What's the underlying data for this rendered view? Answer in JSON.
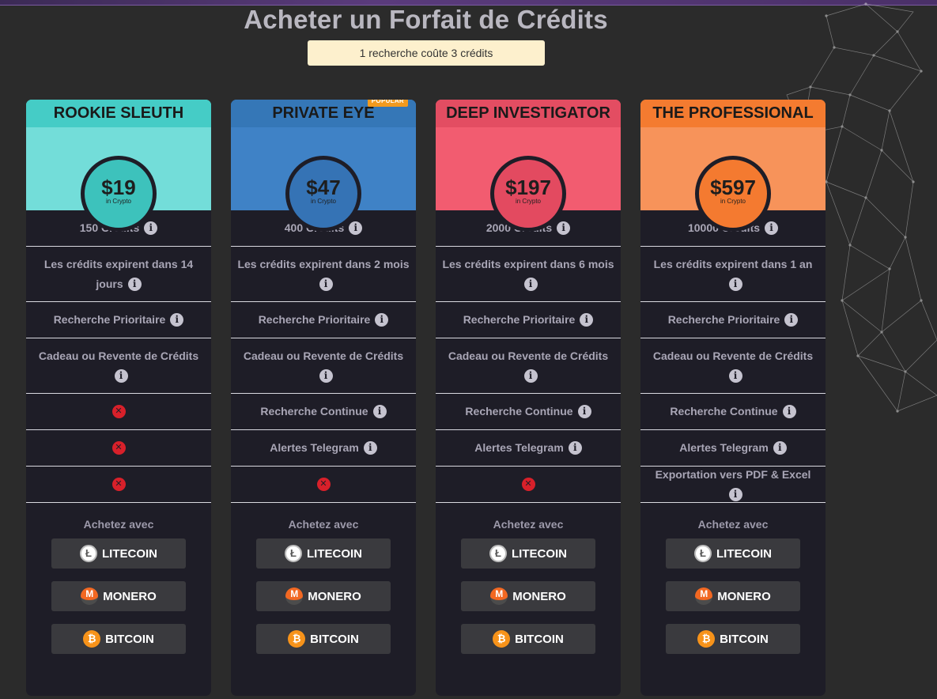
{
  "page": {
    "title": "Acheter un Forfait de Crédits",
    "cost_note": "1 recherche coûte 3 crédits"
  },
  "plans": [
    {
      "name": "ROOKIE SLEUTH",
      "price": "$19",
      "price_sub": "in Crypto",
      "header_color": "#45ccc6",
      "panel_color": "#73ddd9",
      "ring_color": "#3dc2bc",
      "features": [
        {
          "text": "150 Crédits",
          "status": "info"
        },
        {
          "text": "Les crédits expirent dans 14 jours",
          "status": "info"
        },
        {
          "text": "Recherche Prioritaire",
          "status": "info"
        },
        {
          "text": "Cadeau ou Revente de Crédits",
          "status": "info"
        },
        {
          "text": "",
          "status": "unavailable"
        },
        {
          "text": "",
          "status": "unavailable"
        },
        {
          "text": "",
          "status": "unavailable"
        }
      ]
    },
    {
      "name": "PRIVATE EYE",
      "badge": "POPULAR",
      "price": "$47",
      "price_sub": "in Crypto",
      "header_color": "#3577b7",
      "panel_color": "#3f82c6",
      "ring_color": "#3573b5",
      "features": [
        {
          "text": "400 Crédits",
          "status": "info"
        },
        {
          "text": "Les crédits expirent dans 2 mois",
          "status": "info"
        },
        {
          "text": "Recherche Prioritaire",
          "status": "info"
        },
        {
          "text": "Cadeau ou Revente de Crédits",
          "status": "info"
        },
        {
          "text": "Recherche Continue",
          "status": "info"
        },
        {
          "text": "Alertes Telegram",
          "status": "info"
        },
        {
          "text": "",
          "status": "unavailable"
        }
      ]
    },
    {
      "name": "DEEP INVESTIGATOR",
      "price": "$197",
      "price_sub": "in Crypto",
      "header_color": "#e34d62",
      "panel_color": "#f25c70",
      "ring_color": "#e34a60",
      "features": [
        {
          "text": "2000 Crédits",
          "status": "info"
        },
        {
          "text": "Les crédits expirent dans 6 mois",
          "status": "info"
        },
        {
          "text": "Recherche Prioritaire",
          "status": "info"
        },
        {
          "text": "Cadeau ou Revente de Crédits",
          "status": "info"
        },
        {
          "text": "Recherche Continue",
          "status": "info"
        },
        {
          "text": "Alertes Telegram",
          "status": "info"
        },
        {
          "text": "",
          "status": "unavailable"
        }
      ]
    },
    {
      "name": "THE PROFESSIONAL",
      "price": "$597",
      "price_sub": "in Crypto",
      "header_color": "#f47b30",
      "panel_color": "#f7935a",
      "ring_color": "#f47a30",
      "features": [
        {
          "text": "10000 Crédits",
          "status": "info"
        },
        {
          "text": "Les crédits expirent dans 1 an",
          "status": "info"
        },
        {
          "text": "Recherche Prioritaire",
          "status": "info"
        },
        {
          "text": "Cadeau ou Revente de Crédits",
          "status": "info"
        },
        {
          "text": "Recherche Continue",
          "status": "info"
        },
        {
          "text": "Alertes Telegram",
          "status": "info"
        },
        {
          "text": "Exportation vers PDF & Excel",
          "status": "info"
        }
      ]
    }
  ],
  "purchase": {
    "label": "Achetez avec",
    "methods": [
      {
        "label": "LITECOIN",
        "icon": "litecoin-icon"
      },
      {
        "label": "MONERO",
        "icon": "monero-icon"
      },
      {
        "label": "BITCOIN",
        "icon": "bitcoin-icon"
      }
    ]
  }
}
